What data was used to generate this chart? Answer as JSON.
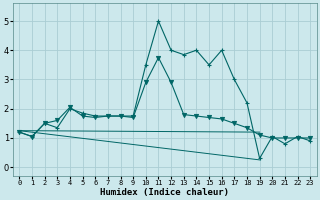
{
  "xlabel": "Humidex (Indice chaleur)",
  "bg_color": "#cce8ec",
  "grid_color": "#aacdd4",
  "line_color": "#006666",
  "x_ticks": [
    0,
    1,
    2,
    3,
    4,
    5,
    6,
    7,
    8,
    9,
    10,
    11,
    12,
    13,
    14,
    15,
    16,
    17,
    18,
    19,
    20,
    21,
    22,
    23
  ],
  "y_ticks": [
    0,
    1,
    2,
    3,
    4,
    5
  ],
  "ylim": [
    -0.3,
    5.6
  ],
  "xlim": [
    -0.5,
    23.5
  ],
  "line1_x": [
    0,
    1,
    2,
    3,
    4,
    5,
    6,
    7,
    8,
    9,
    10,
    11,
    12,
    13,
    14,
    15,
    16,
    17,
    18,
    19,
    20,
    21,
    22,
    23
  ],
  "line1_y": [
    1.2,
    1.05,
    1.5,
    1.35,
    2.0,
    1.85,
    1.75,
    1.75,
    1.75,
    1.75,
    3.5,
    5.0,
    4.0,
    3.85,
    4.0,
    3.5,
    4.0,
    3.0,
    2.2,
    0.3,
    1.05,
    0.8,
    1.05,
    0.9
  ],
  "line2_x": [
    0,
    1,
    2,
    3,
    4,
    5,
    6,
    7,
    8,
    9,
    10,
    11,
    12,
    13,
    14,
    15,
    16,
    17,
    18,
    19,
    20,
    21,
    22,
    23
  ],
  "line2_y": [
    1.2,
    1.05,
    1.5,
    1.6,
    2.05,
    1.75,
    1.7,
    1.75,
    1.75,
    1.7,
    2.9,
    3.75,
    2.9,
    1.8,
    1.75,
    1.7,
    1.65,
    1.5,
    1.35,
    1.1,
    1.0,
    1.0,
    1.0,
    1.0
  ],
  "line3_x": [
    0,
    19
  ],
  "line3_y": [
    1.25,
    1.2
  ],
  "line4_x": [
    0,
    19
  ],
  "line4_y": [
    1.25,
    0.25
  ]
}
